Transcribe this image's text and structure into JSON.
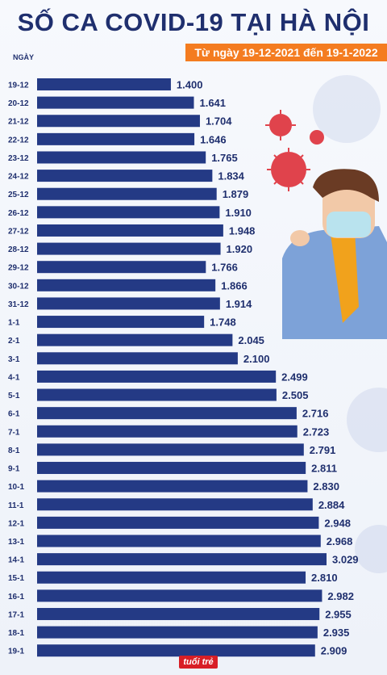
{
  "header": {
    "title": "SỐ CA COVID-19 TẠI HÀ NỘI",
    "subtitle": "Từ ngày 19-12-2021 đến 19-1-2022",
    "axis_label": "NGÀY",
    "logo": "tuổi trẻ"
  },
  "colors": {
    "bar": "#243a85",
    "text": "#1f2f6e",
    "accent": "#f47c20",
    "virus": "#e0434c"
  },
  "chart_data": {
    "type": "bar",
    "orientation": "horizontal",
    "title": "SỐ CA COVID-19 TẠI HÀ NỘI",
    "subtitle": "Từ ngày 19-12-2021 đến 19-1-2022",
    "ylabel": "NGÀY",
    "xlim": [
      0,
      3100
    ],
    "categories": [
      "19-12",
      "20-12",
      "21-12",
      "22-12",
      "23-12",
      "24-12",
      "25-12",
      "26-12",
      "27-12",
      "28-12",
      "29-12",
      "30-12",
      "31-12",
      "1-1",
      "2-1",
      "3-1",
      "4-1",
      "5-1",
      "6-1",
      "7-1",
      "8-1",
      "9-1",
      "10-1",
      "11-1",
      "12-1",
      "13-1",
      "14-1",
      "15-1",
      "16-1",
      "17-1",
      "18-1",
      "19-1"
    ],
    "values": [
      1400,
      1641,
      1704,
      1646,
      1765,
      1834,
      1879,
      1910,
      1948,
      1920,
      1766,
      1866,
      1914,
      1748,
      2045,
      2100,
      2499,
      2505,
      2716,
      2723,
      2791,
      2811,
      2830,
      2884,
      2948,
      2968,
      3029,
      2810,
      2982,
      2955,
      2935,
      2909
    ],
    "value_labels": [
      "1.400",
      "1.641",
      "1.704",
      "1.646",
      "1.765",
      "1.834",
      "1.879",
      "1.910",
      "1.948",
      "1.920",
      "1.766",
      "1.866",
      "1.914",
      "1.748",
      "2.045",
      "2.100",
      "2.499",
      "2.505",
      "2.716",
      "2.723",
      "2.791",
      "2.811",
      "2.830",
      "2.884",
      "2.948",
      "2.968",
      "3.029",
      "2.810",
      "2.982",
      "2.955",
      "2.935",
      "2.909"
    ]
  }
}
